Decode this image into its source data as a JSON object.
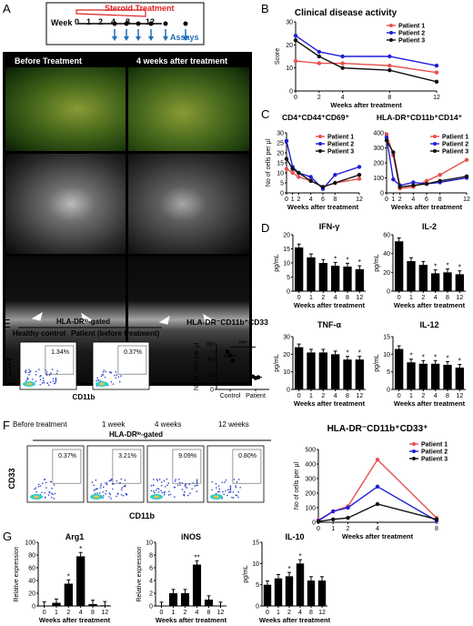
{
  "panels": {
    "A": "A",
    "B": "B",
    "C": "C",
    "D": "D",
    "E": "E",
    "F": "F",
    "G": "G"
  },
  "timeline": {
    "treatment": "Steroid Treatment",
    "week_label": "Week",
    "weeks": [
      "0",
      "1",
      "2",
      "4",
      "8",
      "12"
    ],
    "assays": "Assays"
  },
  "fundus": {
    "before": "Before Treatment",
    "after": "4 weeks after treatment"
  },
  "colors": {
    "patient1": "#e8504f",
    "patient2": "#1f1fd6",
    "patient3": "#111111"
  },
  "panelB": {
    "title": "Clinical disease activity",
    "ylabel": "Score",
    "xlabel": "Weeks after treatment",
    "legend": [
      "Patient 1",
      "Patient 2",
      "Patient 3"
    ]
  },
  "panelC": {
    "left_title": "CD4⁺CD44⁺CD69⁺",
    "right_title": "HLA-DR⁺CD11b⁺CD14⁺",
    "ylabel": "No of cells per µl",
    "xlabel": "Weeks after treatment",
    "legend": [
      "Patient 1",
      "Patient 2",
      "Patient 3"
    ]
  },
  "panelD": {
    "xlabel": "Weeks after treatment",
    "ylabel": "pg/mL",
    "titles": [
      "IFN-γ",
      "IL-2",
      "TNF-α",
      "IL-12"
    ]
  },
  "panelE": {
    "gate": "HLA-DRˡᵒ-gated",
    "healthy": "Healthy control",
    "patient": "Patient (before treatment)",
    "pct1": "1.34%",
    "pct2": "0.37%",
    "xaxis": "CD11b",
    "yaxis": "CD33",
    "dot_title": "HLA-DR⁻CD11b⁺CD33",
    "dot_ylabel": "No of cells per µl",
    "dot_cats": [
      "Control",
      "Patient"
    ],
    "sig": "***"
  },
  "panelF": {
    "gate": "HLA-DRˡᵒ-gated",
    "cols": [
      "Before treatment",
      "1 week",
      "4 weeks",
      "12 weeks"
    ],
    "pcts": [
      "0.37%",
      "3.21%",
      "9.09%",
      "0.80%"
    ],
    "xaxis": "CD11b",
    "yaxis": "CD33",
    "title": "HLA-DR⁻CD11b⁺CD33⁺",
    "ylabel": "No of cells per µl",
    "xlabel": "Weeks after treatment",
    "legend": [
      "Patient 1",
      "Patient 2",
      "Patient 3"
    ]
  },
  "panelG": {
    "titles": [
      "Arg1",
      "iNOS",
      "IL-10"
    ],
    "ylabels": [
      "Relative expression",
      "Relative expression",
      "pg/mL"
    ],
    "xlabel": "Weeks after treatment"
  },
  "chart_data": [
    {
      "type": "line",
      "title": "Clinical disease activity",
      "xlabel": "Weeks after treatment",
      "ylabel": "Score",
      "x": [
        0,
        2,
        4,
        8,
        12
      ],
      "ylim": [
        0,
        30
      ],
      "yticks": [
        0,
        10,
        20,
        30
      ],
      "series": [
        {
          "name": "Patient 1",
          "values": [
            13,
            12,
            12,
            11,
            8
          ]
        },
        {
          "name": "Patient 2",
          "values": [
            24,
            17,
            15,
            15,
            11
          ]
        },
        {
          "name": "Patient 3",
          "values": [
            22,
            15,
            10,
            9,
            4
          ]
        }
      ]
    },
    {
      "type": "line",
      "title": "CD4⁺CD44⁺CD69⁺",
      "xlabel": "Weeks after treatment",
      "ylabel": "No of cells per µl",
      "x": [
        0,
        1,
        2,
        4,
        6,
        8,
        12
      ],
      "ylim": [
        0,
        30
      ],
      "yticks": [
        0,
        5,
        10,
        15,
        20,
        25,
        30
      ],
      "series": [
        {
          "name": "Patient 1",
          "values": [
            12,
            10,
            8,
            6,
            3,
            5,
            7
          ]
        },
        {
          "name": "Patient 2",
          "values": [
            26,
            13,
            10,
            8,
            2,
            9,
            13
          ]
        },
        {
          "name": "Patient 3",
          "values": [
            17,
            12,
            10,
            6,
            3,
            5,
            9
          ]
        }
      ]
    },
    {
      "type": "line",
      "title": "HLA-DR⁺CD11b⁺CD14⁺",
      "xlabel": "Weeks after treatment",
      "ylabel": "No of cells per µl",
      "x": [
        0,
        1,
        2,
        4,
        6,
        8,
        12
      ],
      "ylim": [
        0,
        400
      ],
      "yticks": [
        0,
        100,
        200,
        300,
        400
      ],
      "series": [
        {
          "name": "Patient 1",
          "values": [
            390,
            250,
            30,
            40,
            80,
            120,
            220
          ]
        },
        {
          "name": "Patient 2",
          "values": [
            370,
            90,
            50,
            70,
            60,
            70,
            100
          ]
        },
        {
          "name": "Patient 3",
          "values": [
            350,
            270,
            40,
            50,
            60,
            80,
            110
          ]
        }
      ]
    },
    {
      "type": "bar",
      "title": "IFN-γ",
      "categories": [
        "0",
        "1",
        "2",
        "4",
        "8",
        "12"
      ],
      "values": [
        15.5,
        12,
        10,
        9,
        8.7,
        7.8
      ],
      "ylim": [
        0,
        20
      ],
      "yticks": [
        0,
        5,
        10,
        15,
        20
      ],
      "sig": [
        "",
        "",
        "",
        "*",
        "*",
        "*"
      ]
    },
    {
      "type": "bar",
      "title": "IL-2",
      "categories": [
        "0",
        "1",
        "2",
        "4",
        "8",
        "12"
      ],
      "values": [
        53,
        32,
        28,
        19,
        20,
        18
      ],
      "ylim": [
        0,
        60
      ],
      "yticks": [
        0,
        20,
        40,
        60
      ],
      "sig": [
        "",
        "",
        "",
        "*",
        "*",
        "*"
      ]
    },
    {
      "type": "bar",
      "title": "TNF-α",
      "categories": [
        "0",
        "1",
        "2",
        "4",
        "8",
        "12"
      ],
      "values": [
        24,
        21,
        21,
        20,
        17,
        17
      ],
      "ylim": [
        0,
        30
      ],
      "yticks": [
        0,
        10,
        20,
        30
      ],
      "sig": [
        "",
        "",
        "",
        "",
        "*",
        "*"
      ]
    },
    {
      "type": "bar",
      "title": "IL-12",
      "categories": [
        "0",
        "1",
        "2",
        "4",
        "8",
        "12"
      ],
      "values": [
        11.5,
        7.7,
        7.3,
        7.3,
        7,
        6.2
      ],
      "ylim": [
        0,
        15
      ],
      "yticks": [
        0,
        5,
        10,
        15
      ],
      "sig": [
        "",
        "*",
        "*",
        "*",
        "*",
        "*"
      ]
    },
    {
      "type": "scatter",
      "title": "HLA-DR⁻CD11b⁺CD33",
      "categories": [
        "Control",
        "Patient"
      ],
      "ylim": [
        0,
        60
      ],
      "yticks": [
        0,
        20,
        40,
        60
      ],
      "points": [
        [
          50,
          45,
          38
        ],
        [
          17,
          15,
          16
        ]
      ],
      "means": [
        44,
        16
      ]
    },
    {
      "type": "line",
      "title": "HLA-DR⁻CD11b⁺CD33⁺",
      "xlabel": "Weeks after treatment",
      "ylabel": "No of cells per µl",
      "x": [
        0,
        1,
        2,
        4,
        8
      ],
      "ylim": [
        0,
        500
      ],
      "yticks": [
        0,
        100,
        200,
        300,
        400,
        500
      ],
      "series": [
        {
          "name": "Patient 1",
          "values": [
            15,
            75,
            110,
            430,
            30
          ]
        },
        {
          "name": "Patient 2",
          "values": [
            10,
            75,
            100,
            245,
            10
          ]
        },
        {
          "name": "Patient 3",
          "values": [
            5,
            20,
            30,
            125,
            20
          ]
        }
      ]
    },
    {
      "type": "bar",
      "title": "Arg1",
      "categories": [
        "0",
        "1",
        "2",
        "4",
        "8",
        "12"
      ],
      "values": [
        0.5,
        5,
        35,
        78,
        3,
        1
      ],
      "ylim": [
        0,
        100
      ],
      "yticks": [
        0,
        20,
        40,
        60,
        80,
        100
      ],
      "sig": [
        "",
        "",
        "*",
        "*",
        "",
        ""
      ]
    },
    {
      "type": "bar",
      "title": "iNOS",
      "categories": [
        "0",
        "1",
        "2",
        "4",
        "8",
        "12"
      ],
      "values": [
        0,
        2,
        2,
        6.5,
        1,
        0
      ],
      "ylim": [
        0,
        10
      ],
      "yticks": [
        0,
        2,
        4,
        6,
        8,
        10
      ],
      "sig": [
        "",
        "",
        "",
        "**",
        "",
        ""
      ]
    },
    {
      "type": "bar",
      "title": "IL-10",
      "categories": [
        "0",
        "1",
        "2",
        "4",
        "8",
        "12"
      ],
      "values": [
        5,
        6.5,
        7,
        10,
        6,
        6
      ],
      "ylim": [
        0,
        15
      ],
      "yticks": [
        0,
        5,
        10,
        15
      ],
      "sig": [
        "",
        "",
        "*",
        "*",
        "",
        ""
      ]
    }
  ]
}
